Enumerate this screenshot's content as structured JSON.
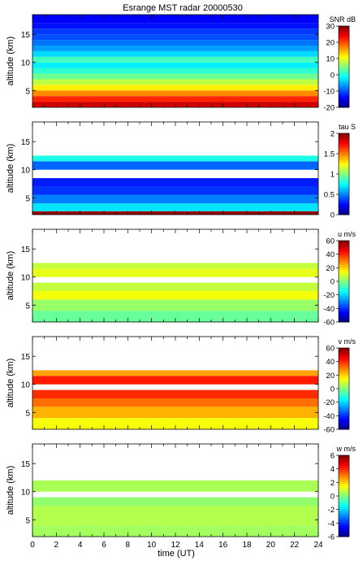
{
  "figure": {
    "title": "Esrange MST radar 20000530",
    "xlabel": "time (UT)"
  },
  "chart_data": [
    {
      "type": "heatmap",
      "variable": "SNR",
      "colorbar_label": "SNR dB",
      "ylabel": "altitude (km)",
      "xlim": [
        0,
        24
      ],
      "ylim": [
        2,
        18.5
      ],
      "yticks": [
        5,
        10,
        15
      ],
      "clim": [
        -20,
        30
      ],
      "cbar_ticks": [
        -20,
        -10,
        0,
        10,
        20,
        30
      ],
      "layers": [
        {
          "alt_from": 2,
          "alt_to": 3,
          "value": 26
        },
        {
          "alt_from": 3,
          "alt_to": 4,
          "value": 22
        },
        {
          "alt_from": 4,
          "alt_to": 5,
          "value": 17
        },
        {
          "alt_from": 5,
          "alt_to": 6,
          "value": 12
        },
        {
          "alt_from": 6,
          "alt_to": 7,
          "value": 8
        },
        {
          "alt_from": 7,
          "alt_to": 8,
          "value": 4
        },
        {
          "alt_from": 8,
          "alt_to": 9,
          "value": 1
        },
        {
          "alt_from": 9,
          "alt_to": 10,
          "value": -2
        },
        {
          "alt_from": 10,
          "alt_to": 11,
          "value": 2
        },
        {
          "alt_from": 11,
          "alt_to": 12,
          "value": -3
        },
        {
          "alt_from": 12,
          "alt_to": 13,
          "value": -6
        },
        {
          "alt_from": 13,
          "alt_to": 14,
          "value": -8
        },
        {
          "alt_from": 14,
          "alt_to": 15,
          "value": -10
        },
        {
          "alt_from": 15,
          "alt_to": 16,
          "value": -11
        },
        {
          "alt_from": 16,
          "alt_to": 17,
          "value": -13
        },
        {
          "alt_from": 17,
          "alt_to": 18.5,
          "value": -14
        }
      ]
    },
    {
      "type": "heatmap",
      "variable": "tau",
      "colorbar_label": "tau S",
      "ylabel": "altitude (km)",
      "xlim": [
        0,
        24
      ],
      "ylim": [
        2,
        18.5
      ],
      "yticks": [
        5,
        10,
        15
      ],
      "clim": [
        0,
        2
      ],
      "cbar_ticks": [
        0,
        0.5,
        1,
        1.5,
        2
      ],
      "layers": [
        {
          "alt_from": 2,
          "alt_to": 2.6,
          "value": 1.95
        },
        {
          "alt_from": 2.6,
          "alt_to": 4,
          "value": 0.7
        },
        {
          "alt_from": 4,
          "alt_to": 5.5,
          "value": 0.5
        },
        {
          "alt_from": 5.5,
          "alt_to": 7,
          "value": 0.35
        },
        {
          "alt_from": 7,
          "alt_to": 8.5,
          "value": 0.3
        },
        {
          "alt_from": 8.5,
          "alt_to": 10,
          "value": null
        },
        {
          "alt_from": 10,
          "alt_to": 11.5,
          "value": 0.45
        },
        {
          "alt_from": 11.5,
          "alt_to": 12.5,
          "value": 0.8
        },
        {
          "alt_from": 12.5,
          "alt_to": 18.5,
          "value": null
        }
      ]
    },
    {
      "type": "heatmap",
      "variable": "u",
      "colorbar_label": "u m/s",
      "ylabel": "altitude (km)",
      "xlim": [
        0,
        24
      ],
      "ylim": [
        2,
        18.5
      ],
      "yticks": [
        5,
        10,
        15
      ],
      "clim": [
        -60,
        60
      ],
      "cbar_ticks": [
        -60,
        -40,
        -20,
        0,
        20,
        40,
        60
      ],
      "layers": [
        {
          "alt_from": 2,
          "alt_to": 4,
          "value": -3
        },
        {
          "alt_from": 4,
          "alt_to": 6,
          "value": 3
        },
        {
          "alt_from": 6,
          "alt_to": 7.5,
          "value": 14
        },
        {
          "alt_from": 7.5,
          "alt_to": 9,
          "value": 8
        },
        {
          "alt_from": 9,
          "alt_to": 10,
          "value": null
        },
        {
          "alt_from": 10,
          "alt_to": 11.5,
          "value": 12
        },
        {
          "alt_from": 11.5,
          "alt_to": 12.5,
          "value": 8
        },
        {
          "alt_from": 12.5,
          "alt_to": 18.5,
          "value": null
        }
      ]
    },
    {
      "type": "heatmap",
      "variable": "v",
      "colorbar_label": "v m/s",
      "ylabel": "altitude (km)",
      "xlim": [
        0,
        24
      ],
      "ylim": [
        2,
        18.5
      ],
      "yticks": [
        5,
        10,
        15
      ],
      "clim": [
        -60,
        60
      ],
      "cbar_ticks": [
        -60,
        -40,
        -20,
        0,
        20,
        40,
        60
      ],
      "layers": [
        {
          "alt_from": 2,
          "alt_to": 4,
          "value": 14
        },
        {
          "alt_from": 4,
          "alt_to": 6,
          "value": 24
        },
        {
          "alt_from": 6,
          "alt_to": 7.5,
          "value": 32
        },
        {
          "alt_from": 7.5,
          "alt_to": 9,
          "value": 40
        },
        {
          "alt_from": 9,
          "alt_to": 10,
          "value": null
        },
        {
          "alt_from": 10,
          "alt_to": 11.5,
          "value": 42
        },
        {
          "alt_from": 11.5,
          "alt_to": 12.5,
          "value": 26
        },
        {
          "alt_from": 12.5,
          "alt_to": 18.5,
          "value": null
        }
      ]
    },
    {
      "type": "heatmap",
      "variable": "w",
      "colorbar_label": "w m/s",
      "ylabel": "altitude (km)",
      "xlim": [
        0,
        24
      ],
      "ylim": [
        2,
        18.5
      ],
      "xticks": [
        0,
        2,
        4,
        6,
        8,
        10,
        12,
        14,
        16,
        18,
        20,
        22,
        24
      ],
      "yticks": [
        5,
        10,
        15
      ],
      "clim": [
        -6,
        6
      ],
      "cbar_ticks": [
        -6,
        -4,
        -2,
        0,
        2,
        4,
        6
      ],
      "layers": [
        {
          "alt_from": 2,
          "alt_to": 4,
          "value": 0.4
        },
        {
          "alt_from": 4,
          "alt_to": 7.5,
          "value": 0.6
        },
        {
          "alt_from": 7.5,
          "alt_to": 9,
          "value": 0.2
        },
        {
          "alt_from": 9,
          "alt_to": 10,
          "value": null
        },
        {
          "alt_from": 10,
          "alt_to": 12,
          "value": 0.5
        },
        {
          "alt_from": 12,
          "alt_to": 18.5,
          "value": null
        }
      ]
    }
  ]
}
